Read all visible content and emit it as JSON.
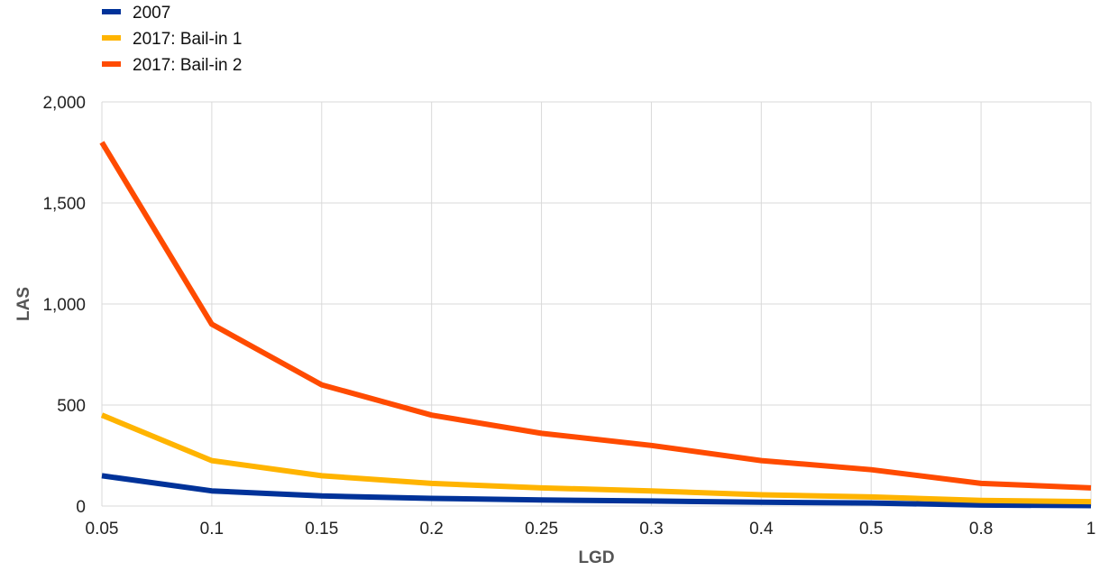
{
  "chart_data": {
    "type": "line",
    "xlabel": "LGD",
    "ylabel": "LAS",
    "categories": [
      "0.05",
      "0.1",
      "0.15",
      "0.2",
      "0.25",
      "0.3",
      "0.4",
      "0.5",
      "0.8",
      "1"
    ],
    "ylim": [
      0,
      2000
    ],
    "yticks": [
      0,
      500,
      1000,
      1500,
      2000
    ],
    "ytick_labels": [
      "0",
      "500",
      "1,000",
      "1,500",
      "2,000"
    ],
    "grid": true,
    "legend_position": "top-left",
    "series": [
      {
        "name": "2007",
        "color": "#003299",
        "values": [
          150,
          75,
          50,
          38,
          30,
          25,
          19,
          15,
          5,
          2
        ]
      },
      {
        "name": "2017: Bail-in 1",
        "color": "#FFB400",
        "values": [
          450,
          225,
          150,
          112,
          90,
          75,
          56,
          45,
          28,
          22
        ]
      },
      {
        "name": "2017: Bail-in 2",
        "color": "#FF4B00",
        "values": [
          1800,
          900,
          600,
          450,
          360,
          300,
          225,
          180,
          112,
          90
        ]
      }
    ]
  }
}
